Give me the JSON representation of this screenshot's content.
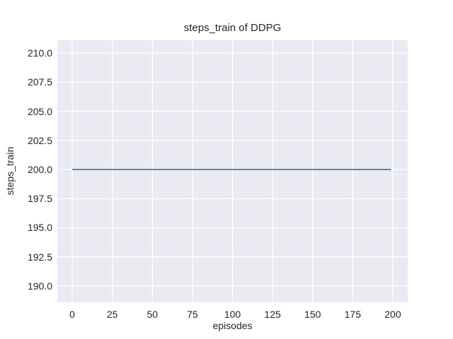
{
  "figure": {
    "background": "#ffffff",
    "text_color": "#262626"
  },
  "chart_data": {
    "type": "line",
    "title": "steps_train of DDPG",
    "xlabel": "episodes",
    "ylabel": "steps_train",
    "xlim": [
      -9.3,
      209.3
    ],
    "ylim": [
      188.6,
      211.1
    ],
    "xticks": {
      "values": [
        0,
        25,
        50,
        75,
        100,
        125,
        150,
        175,
        200
      ],
      "labels": [
        "0",
        "25",
        "50",
        "75",
        "100",
        "125",
        "150",
        "175",
        "200"
      ]
    },
    "yticks": {
      "values": [
        190,
        192.5,
        195,
        197.5,
        200,
        202.5,
        205,
        207.5,
        210
      ],
      "labels": [
        "190.0",
        "192.5",
        "195.0",
        "197.5",
        "200.0",
        "202.5",
        "205.0",
        "207.5",
        "210.0"
      ]
    },
    "grid": true,
    "legend": false,
    "series": [
      {
        "name": "steps_train",
        "color": "#4c72b0",
        "points": [
          [
            0,
            200
          ],
          [
            199,
            200
          ]
        ],
        "constant_y": 200,
        "x_range": [
          0,
          199
        ]
      }
    ],
    "style": {
      "plot_background": "#eaeaf2",
      "grid_color": "#ffffff",
      "grid_width": 1.3,
      "line_width": 1.8
    }
  }
}
